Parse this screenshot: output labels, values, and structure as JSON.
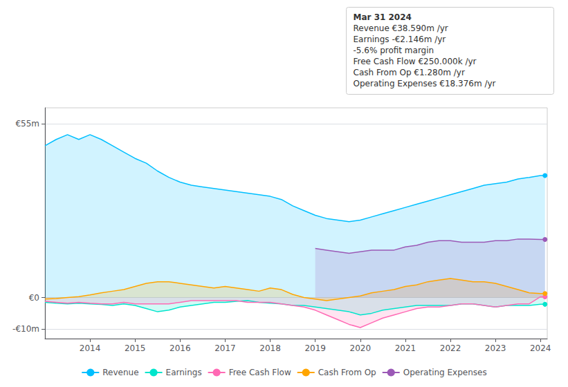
{
  "chart_data": {
    "type": "line",
    "x": [
      2013.0,
      2013.25,
      2013.5,
      2013.75,
      2014.0,
      2014.25,
      2014.5,
      2014.75,
      2015.0,
      2015.25,
      2015.5,
      2015.75,
      2016.0,
      2016.25,
      2016.5,
      2016.75,
      2017.0,
      2017.25,
      2017.5,
      2017.75,
      2018.0,
      2018.25,
      2018.5,
      2018.75,
      2019.0,
      2019.25,
      2019.5,
      2019.75,
      2020.0,
      2020.25,
      2020.5,
      2020.75,
      2021.0,
      2021.25,
      2021.5,
      2021.75,
      2022.0,
      2022.25,
      2022.5,
      2022.75,
      2023.0,
      2023.25,
      2023.5,
      2023.75,
      2024.0,
      2024.1
    ],
    "series": [
      {
        "name": "Revenue",
        "color": "#00bfff",
        "values": [
          48.0,
          50.0,
          51.5,
          50.0,
          51.5,
          50.0,
          48.0,
          46.0,
          44.0,
          42.5,
          40.0,
          38.0,
          36.5,
          35.5,
          35.0,
          34.5,
          34.0,
          33.5,
          33.0,
          32.5,
          32.0,
          31.0,
          29.0,
          27.5,
          26.0,
          25.0,
          24.5,
          24.0,
          24.5,
          25.5,
          26.5,
          27.5,
          28.5,
          29.5,
          30.5,
          31.5,
          32.5,
          33.5,
          34.5,
          35.5,
          36.0,
          36.5,
          37.5,
          38.0,
          38.59,
          38.59
        ]
      },
      {
        "name": "Earnings",
        "color": "#00e5cc",
        "values": [
          -1.5,
          -1.8,
          -2.0,
          -1.8,
          -2.0,
          -2.2,
          -2.5,
          -2.0,
          -2.5,
          -3.5,
          -4.5,
          -4.0,
          -3.0,
          -2.5,
          -2.0,
          -1.5,
          -1.5,
          -1.2,
          -1.0,
          -1.5,
          -1.8,
          -2.0,
          -2.5,
          -2.5,
          -3.0,
          -3.5,
          -4.0,
          -4.5,
          -5.5,
          -5.0,
          -4.0,
          -3.5,
          -3.0,
          -2.5,
          -2.5,
          -2.5,
          -2.5,
          -2.0,
          -2.0,
          -2.5,
          -3.0,
          -2.5,
          -2.5,
          -2.5,
          -2.146,
          -2.146
        ]
      },
      {
        "name": "Free Cash Flow",
        "color": "#ff69b4",
        "values": [
          -1.2,
          -1.5,
          -1.8,
          -1.5,
          -1.8,
          -2.0,
          -2.0,
          -1.5,
          -2.0,
          -2.0,
          -2.0,
          -2.0,
          -1.5,
          -1.0,
          -1.0,
          -1.0,
          -1.0,
          -1.0,
          -1.5,
          -1.5,
          -1.5,
          -2.0,
          -2.5,
          -3.0,
          -4.0,
          -5.5,
          -7.0,
          -8.5,
          -9.5,
          -8.0,
          -6.5,
          -5.5,
          -4.5,
          -3.5,
          -3.0,
          -3.0,
          -2.5,
          -2.0,
          -2.0,
          -2.5,
          -3.0,
          -2.5,
          -2.0,
          -2.0,
          0.25,
          0.25
        ]
      },
      {
        "name": "Cash From Op",
        "color": "#ffa500",
        "values": [
          -0.5,
          -0.3,
          0.0,
          0.3,
          0.8,
          1.5,
          2.0,
          2.5,
          3.5,
          4.5,
          5.0,
          5.0,
          4.5,
          4.0,
          3.5,
          3.0,
          3.5,
          3.0,
          2.5,
          2.0,
          3.0,
          2.5,
          1.0,
          0.0,
          -0.5,
          -1.0,
          -0.5,
          0.0,
          0.5,
          1.5,
          2.0,
          2.5,
          3.5,
          4.0,
          5.0,
          5.5,
          6.0,
          5.5,
          5.0,
          5.0,
          4.5,
          3.5,
          2.5,
          1.5,
          1.28,
          1.28
        ]
      },
      {
        "name": "Operating Expenses",
        "color": "#9b59b6",
        "values": [
          null,
          null,
          null,
          null,
          null,
          null,
          null,
          null,
          null,
          null,
          null,
          null,
          null,
          null,
          null,
          null,
          null,
          null,
          null,
          null,
          null,
          null,
          null,
          null,
          15.5,
          15.0,
          14.5,
          14.0,
          14.5,
          15.0,
          15.0,
          15.0,
          16.0,
          16.5,
          17.5,
          18.0,
          18.0,
          17.5,
          17.5,
          17.5,
          18.0,
          18.0,
          18.5,
          18.5,
          18.376,
          18.376
        ]
      }
    ],
    "xlim": [
      2013.0,
      2024.15
    ],
    "xticks": [
      2014,
      2015,
      2016,
      2017,
      2018,
      2019,
      2020,
      2021,
      2022,
      2023,
      2024
    ],
    "ylim": [
      -13,
      60
    ],
    "yticks": [
      {
        "value": -10,
        "label": "-€10m"
      },
      {
        "value": 0,
        "label": "€0"
      },
      {
        "value": 55,
        "label": "€55m"
      }
    ],
    "grid": true,
    "legend": "bottom",
    "annotations": [
      "Mar 31 2024",
      "Revenue €38.590m /yr",
      "Earnings -€2.146m /yr",
      "-5.6% profit margin",
      "Free Cash Flow €250.000k /yr",
      "Cash From Op €1.280m /yr",
      "Operating Expenses €18.376m /yr"
    ]
  }
}
